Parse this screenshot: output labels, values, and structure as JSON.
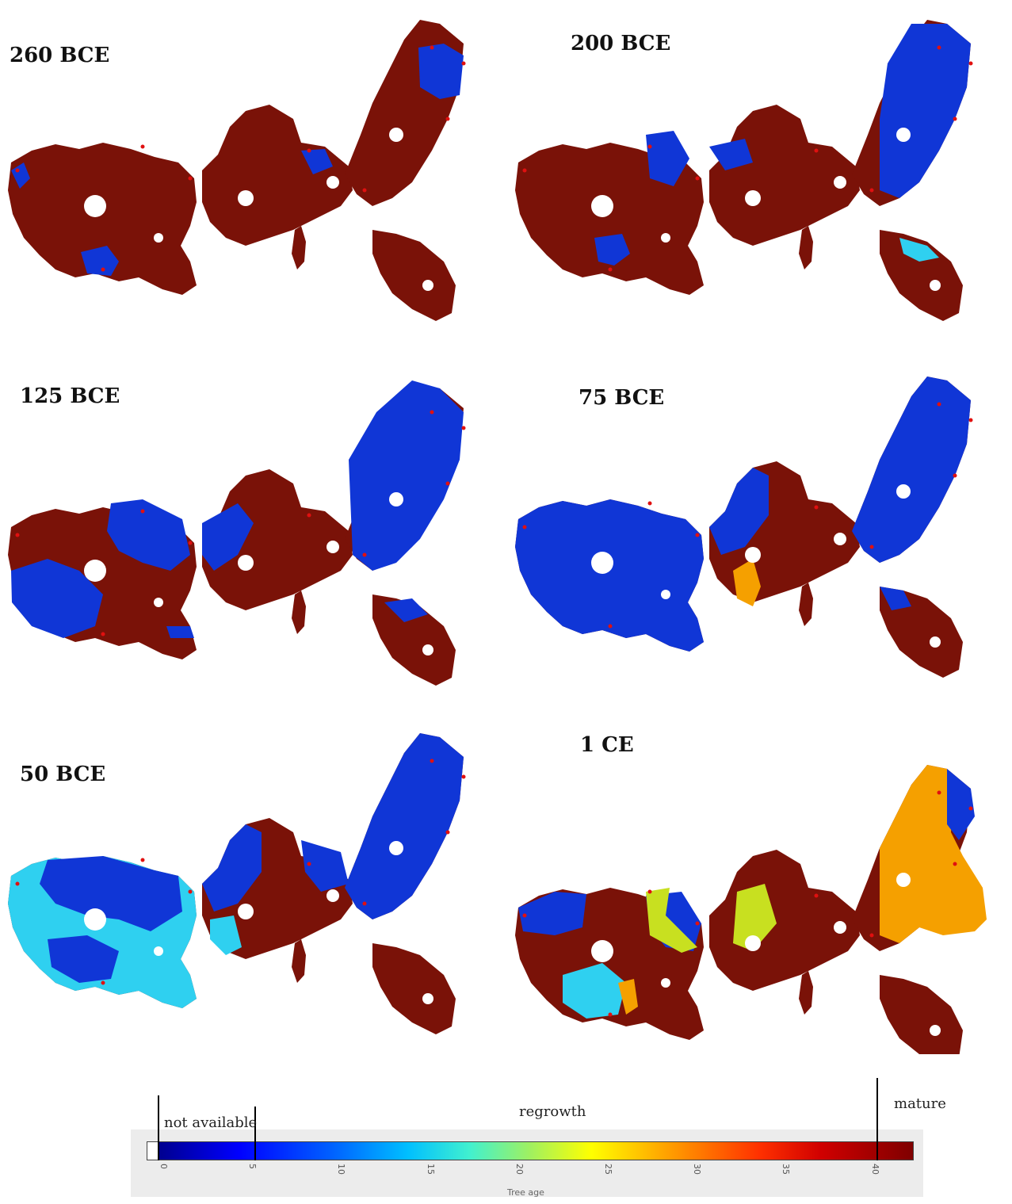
{
  "panels": [
    {
      "label": "260 BCE"
    },
    {
      "label": "200 BCE"
    },
    {
      "label": "125 BCE"
    },
    {
      "label": "75 BCE"
    },
    {
      "label": "50 BCE"
    },
    {
      "label": "1 CE"
    }
  ],
  "legend": {
    "categories": {
      "not_available": "not available",
      "regrowth": "regrowth",
      "mature": "mature"
    },
    "ticks": [
      "0",
      "5",
      "10",
      "15",
      "20",
      "25",
      "30",
      "35",
      "40"
    ],
    "axis_title": "Tree age",
    "colors": {
      "mature": "#7a1208",
      "not_available": "#1036d6",
      "regrowth_light": "#2fd0f0",
      "regrowth_mid": "#c8e020",
      "regrowth_late": "#f5a000"
    }
  }
}
